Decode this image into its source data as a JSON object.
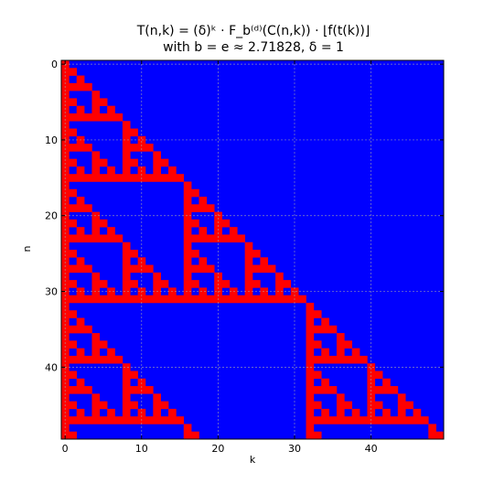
{
  "chart_data": {
    "type": "heatmap",
    "title_line1": "T(n,k) = (δ)ᵏ · F_b⁽ᵈ⁾(C(n,k)) · ⌊f(t(k))⌋",
    "title_line2": "with b = e ≈ 2.71828, δ = 1",
    "xlabel": "k",
    "ylabel": "n",
    "xlim": [
      0,
      49
    ],
    "ylim": [
      0,
      49
    ],
    "xticks": [
      0,
      10,
      20,
      30,
      40
    ],
    "yticks": [
      0,
      10,
      20,
      30,
      40
    ],
    "grid": true,
    "rows": 50,
    "cols": 50,
    "rule": "cell(n,k) is red when k <= n and C(n,k) is odd (k AND (n-k) == 0), otherwise blue",
    "colors": {
      "odd_cell": "#ff0000",
      "background": "#0000ff",
      "grid": "#aaaaaa"
    }
  }
}
